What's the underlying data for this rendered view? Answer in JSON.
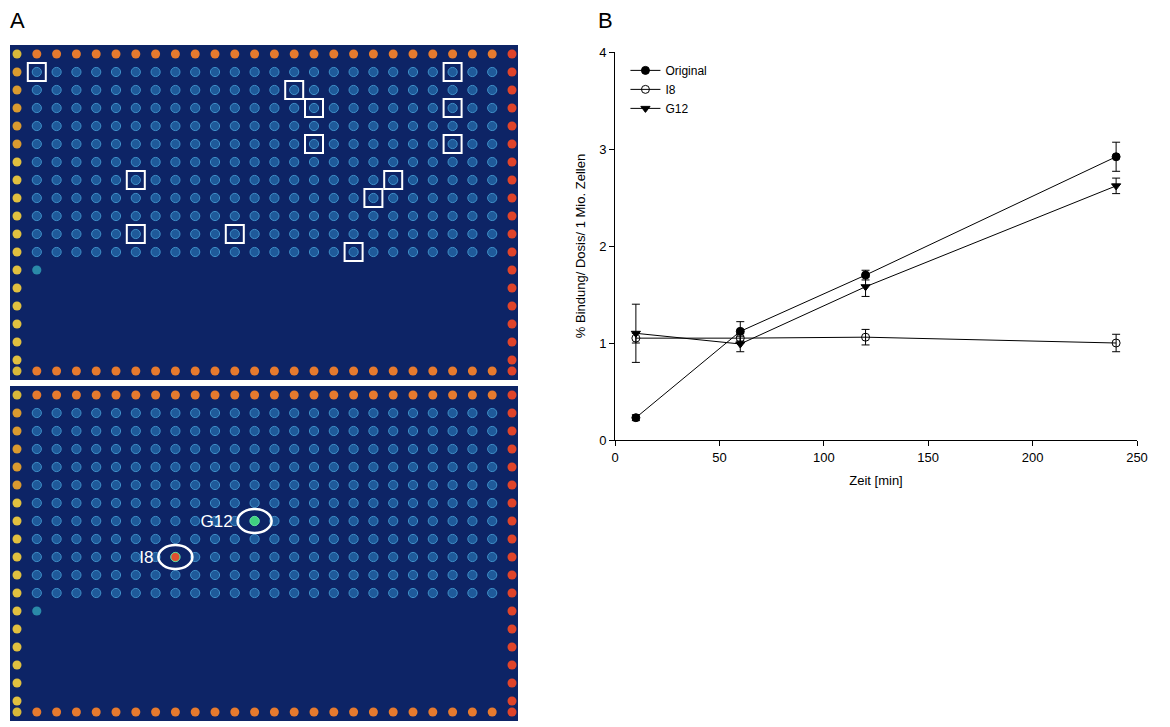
{
  "panel_labels": [
    "A",
    "B"
  ],
  "image_panel": {
    "type": "microarray_scan",
    "images": [
      {
        "marked_spots": [
          [
            1,
            1
          ],
          [
            14,
            2
          ],
          [
            15,
            3
          ],
          [
            15,
            5
          ],
          [
            22,
            1
          ],
          [
            22,
            3
          ],
          [
            22,
            5
          ],
          [
            6,
            7
          ],
          [
            19,
            7
          ],
          [
            18,
            8
          ],
          [
            6,
            10
          ],
          [
            11,
            10
          ],
          [
            17,
            11
          ]
        ]
      },
      {
        "labeled_spots": [
          {
            "label": "G12",
            "col": 12,
            "row": 7
          },
          {
            "label": "I8",
            "col": 8,
            "row": 9
          }
        ]
      }
    ]
  },
  "chart_data": {
    "type": "line",
    "x_label": "Zeit [min]",
    "y_label": "% Bindung/ Dosis/ 1 Mio. Zellen",
    "x": [
      10,
      60,
      120,
      240
    ],
    "series": [
      {
        "name": "Original",
        "color": "#000000",
        "marker": "circle",
        "values": [
          0.23,
          1.12,
          1.7,
          2.92
        ],
        "errors": [
          0.03,
          0.1,
          0.05,
          0.15
        ]
      },
      {
        "name": "I8",
        "color": "#000000",
        "marker": "circle-open",
        "values": [
          1.05,
          1.05,
          1.06,
          1.0
        ],
        "errors": [
          0.05,
          0.05,
          0.08,
          0.09
        ]
      },
      {
        "name": "G12",
        "color": "#000000",
        "marker": "triangle-down",
        "values": [
          1.1,
          0.99,
          1.58,
          2.62
        ],
        "errors": [
          0.3,
          0.08,
          0.1,
          0.08
        ]
      }
    ],
    "xlim": [
      0,
      250
    ],
    "xticks": [
      0,
      50,
      100,
      150,
      200,
      250
    ],
    "ylim": [
      0,
      4
    ],
    "yticks": [
      0,
      1,
      2,
      3,
      4
    ],
    "grid": false,
    "legend": "top-left"
  }
}
